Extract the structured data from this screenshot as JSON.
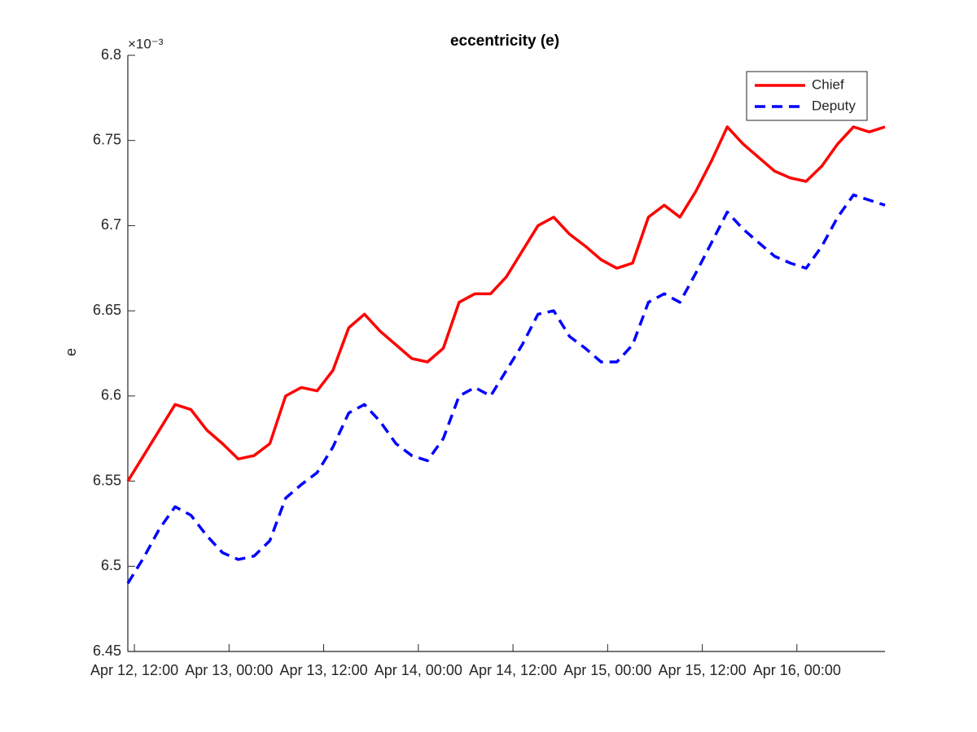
{
  "chart_data": {
    "type": "line",
    "title": "eccentricity (e)",
    "y_label": "e",
    "y_exponent": "×10⁻³",
    "x": [
      "Apr 12, 11:10",
      "Apr 12, 13:10",
      "Apr 12, 15:10",
      "Apr 12, 17:10",
      "Apr 12, 19:10",
      "Apr 12, 21:10",
      "Apr 12, 23:10",
      "Apr 13, 01:10",
      "Apr 13, 03:10",
      "Apr 13, 05:10",
      "Apr 13, 07:10",
      "Apr 13, 09:10",
      "Apr 13, 11:10",
      "Apr 13, 13:10",
      "Apr 13, 15:10",
      "Apr 13, 17:10",
      "Apr 13, 19:10",
      "Apr 13, 21:10",
      "Apr 13, 23:10",
      "Apr 14, 01:10",
      "Apr 14, 03:10",
      "Apr 14, 05:10",
      "Apr 14, 07:10",
      "Apr 14, 09:10",
      "Apr 14, 11:10",
      "Apr 14, 13:10",
      "Apr 14, 15:10",
      "Apr 14, 17:10",
      "Apr 14, 19:10",
      "Apr 14, 21:10",
      "Apr 14, 23:10",
      "Apr 15, 01:10",
      "Apr 15, 03:10",
      "Apr 15, 05:10",
      "Apr 15, 07:10",
      "Apr 15, 09:10",
      "Apr 15, 11:10",
      "Apr 15, 13:10",
      "Apr 15, 15:10",
      "Apr 15, 17:10",
      "Apr 15, 19:10",
      "Apr 15, 21:10",
      "Apr 15, 23:10",
      "Apr 16, 01:10",
      "Apr 16, 03:10",
      "Apr 16, 05:10",
      "Apr 16, 07:10",
      "Apr 16, 09:10",
      "Apr 16, 11:10"
    ],
    "series": [
      {
        "name": "Chief",
        "color": "#ff0000",
        "dash": false,
        "values": [
          6.55,
          6.565,
          6.58,
          6.595,
          6.592,
          6.58,
          6.572,
          6.563,
          6.565,
          6.572,
          6.6,
          6.605,
          6.603,
          6.615,
          6.64,
          6.648,
          6.638,
          6.63,
          6.622,
          6.62,
          6.628,
          6.655,
          6.66,
          6.66,
          6.67,
          6.685,
          6.7,
          6.705,
          6.695,
          6.688,
          6.68,
          6.675,
          6.678,
          6.705,
          6.712,
          6.705,
          6.72,
          6.738,
          6.758,
          6.748,
          6.74,
          6.732,
          6.728,
          6.726,
          6.735,
          6.748,
          6.758,
          6.755,
          6.758
        ]
      },
      {
        "name": "Deputy",
        "color": "#0000ff",
        "dash": true,
        "values": [
          6.49,
          6.505,
          6.522,
          6.535,
          6.53,
          6.518,
          6.508,
          6.504,
          6.506,
          6.515,
          6.54,
          6.548,
          6.555,
          6.57,
          6.59,
          6.595,
          6.585,
          6.572,
          6.565,
          6.562,
          6.575,
          6.6,
          6.605,
          6.6,
          6.615,
          6.63,
          6.648,
          6.65,
          6.635,
          6.628,
          6.62,
          6.62,
          6.63,
          6.655,
          6.66,
          6.655,
          6.672,
          6.69,
          6.708,
          6.698,
          6.69,
          6.682,
          6.678,
          6.675,
          6.688,
          6.705,
          6.718,
          6.715,
          6.712
        ]
      }
    ],
    "xlim": [
      "Apr 12, 11:10",
      "Apr 16, 11:10"
    ],
    "xticks": [
      "Apr 12, 12:00",
      "Apr 13, 00:00",
      "Apr 13, 12:00",
      "Apr 14, 00:00",
      "Apr 14, 12:00",
      "Apr 15, 00:00",
      "Apr 15, 12:00",
      "Apr 16, 00:00"
    ],
    "ylim": [
      6.45,
      6.8
    ],
    "yticks": [
      6.45,
      6.5,
      6.55,
      6.6,
      6.65,
      6.7,
      6.75,
      6.8
    ],
    "grid": false,
    "legend_position": "northeast"
  }
}
